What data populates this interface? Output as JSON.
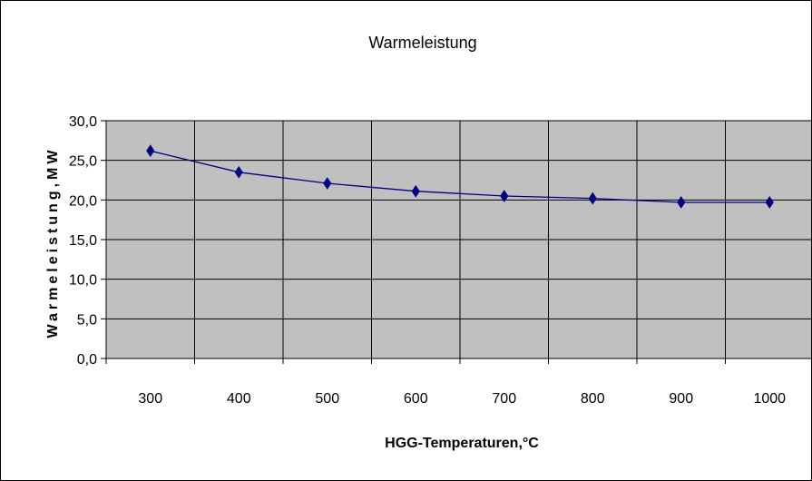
{
  "chart_data": {
    "type": "line",
    "title": "Warmeleistung",
    "xlabel": "HGG-Temperaturen,°C",
    "ylabel": "Warmeleistung,MW",
    "categories": [
      "300",
      "400",
      "500",
      "600",
      "700",
      "800",
      "900",
      "1000"
    ],
    "series": [
      {
        "values": [
          26.2,
          23.5,
          22.1,
          21.1,
          20.5,
          20.2,
          19.7,
          19.7
        ]
      }
    ],
    "ylim": [
      0,
      30
    ],
    "yticks": [
      0,
      5,
      10,
      15,
      20,
      25,
      30
    ],
    "ytick_labels": [
      "0,0",
      "5,0",
      "10,0",
      "15,0",
      "20,0",
      "25,0",
      "30,0"
    ],
    "grid": true,
    "legend": "none",
    "colors": {
      "plot_background": "#c0c0c0",
      "line": "#000080",
      "marker": "#000080",
      "grid": "#000000"
    }
  }
}
